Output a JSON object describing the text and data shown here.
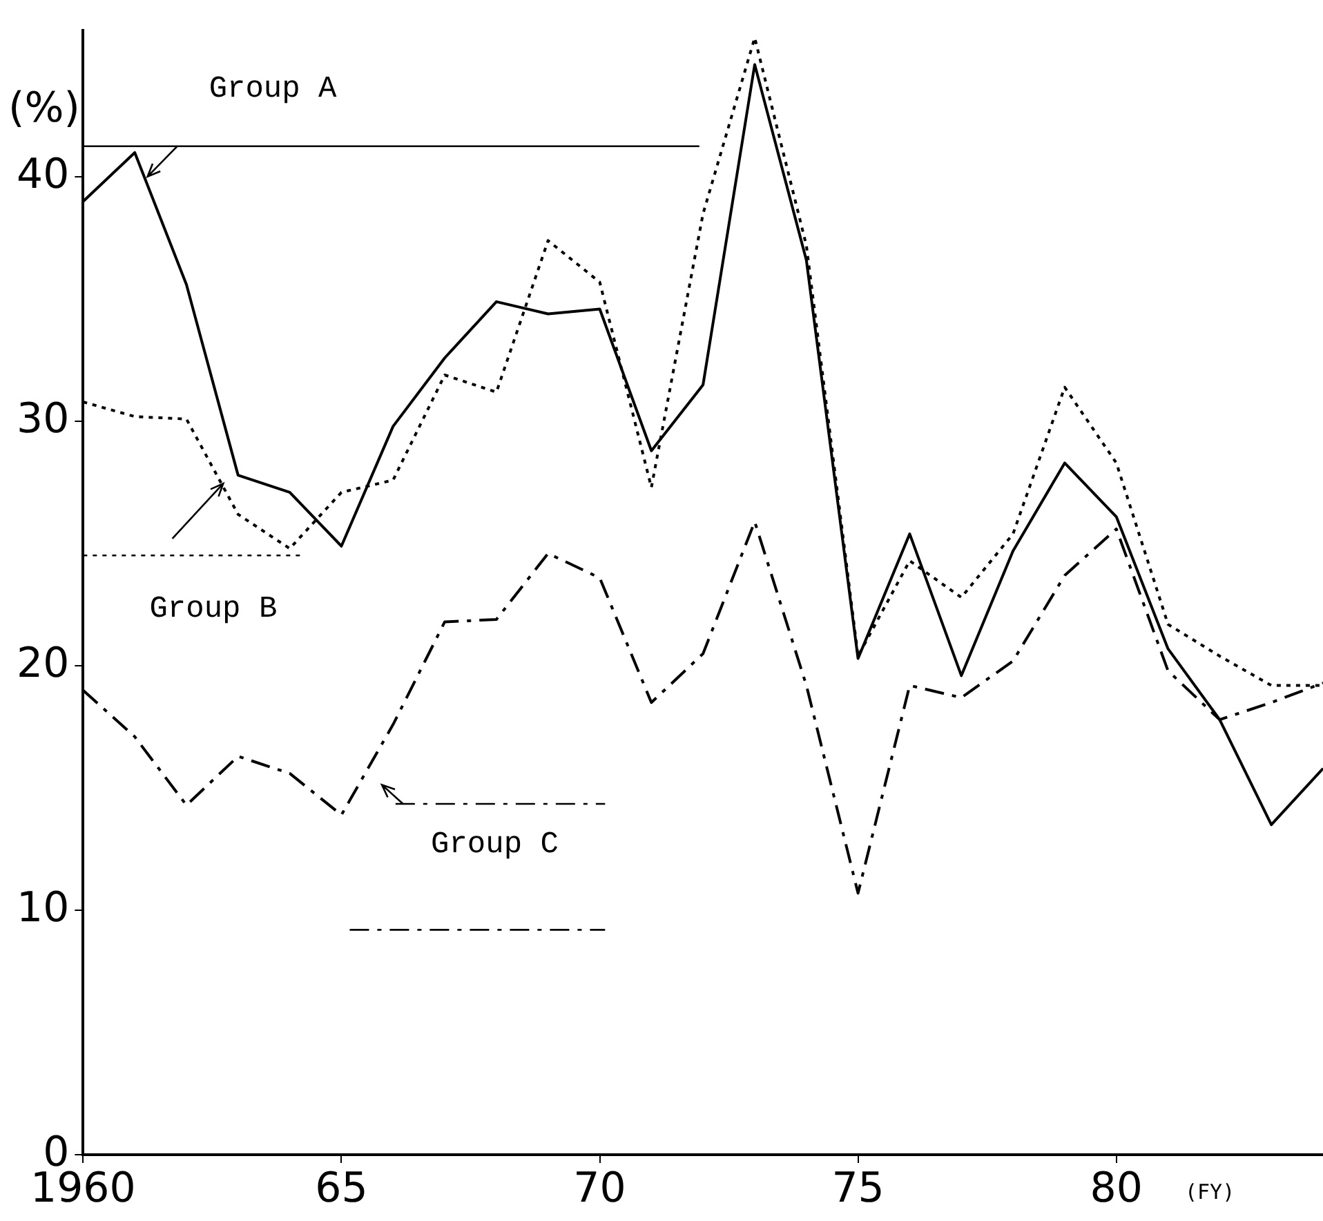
{
  "chart_data": {
    "type": "line",
    "ylabel": "(%)",
    "xlabel": "(FY)",
    "x": [
      1960,
      1961,
      1962,
      1963,
      1964,
      1965,
      1966,
      1967,
      1968,
      1969,
      1970,
      1971,
      1972,
      1973,
      1974,
      1975,
      1976,
      1977,
      1978,
      1979,
      1980,
      1981,
      1982,
      1983,
      1984
    ],
    "series": [
      {
        "name": "Group A",
        "color": "#000000",
        "line_style": "solid",
        "values": [
          39.0,
          41.0,
          35.6,
          27.8,
          27.1,
          24.9,
          29.8,
          32.6,
          34.9,
          34.4,
          34.6,
          28.8,
          31.5,
          44.6,
          36.6,
          20.3,
          25.4,
          19.6,
          24.7,
          28.3,
          26.1,
          20.7,
          17.8,
          13.5,
          15.8
        ]
      },
      {
        "name": "Group B",
        "color": "#000000",
        "line_style": "dotted",
        "values": [
          30.8,
          30.2,
          30.1,
          26.2,
          24.8,
          27.1,
          27.6,
          31.9,
          31.2,
          37.4,
          35.7,
          27.3,
          38.5,
          45.7,
          37.2,
          20.4,
          24.3,
          22.8,
          25.4,
          31.4,
          28.3,
          21.7,
          20.4,
          19.2,
          19.2
        ]
      },
      {
        "name": "Group C",
        "color": "#000000",
        "line_style": "dashdot",
        "values": [
          19.0,
          17.1,
          14.3,
          16.3,
          15.6,
          13.9,
          17.6,
          21.8,
          21.9,
          24.6,
          23.6,
          18.5,
          20.5,
          25.9,
          19.2,
          10.7,
          19.2,
          18.7,
          20.2,
          23.7,
          25.6,
          19.8,
          17.8,
          18.5,
          19.3
        ]
      }
    ],
    "xlim": [
      1960,
      1984
    ],
    "xticks": [
      1960,
      {
        "value": 1965,
        "label": "65"
      },
      {
        "value": 1970,
        "label": "70"
      },
      {
        "value": 1975,
        "label": "75"
      },
      {
        "value": 1980,
        "label": "80"
      }
    ],
    "ylim": [
      0,
      46
    ],
    "yticks": [
      0,
      10,
      20,
      30,
      40
    ],
    "grid": false,
    "legend": false,
    "marker": "none"
  }
}
